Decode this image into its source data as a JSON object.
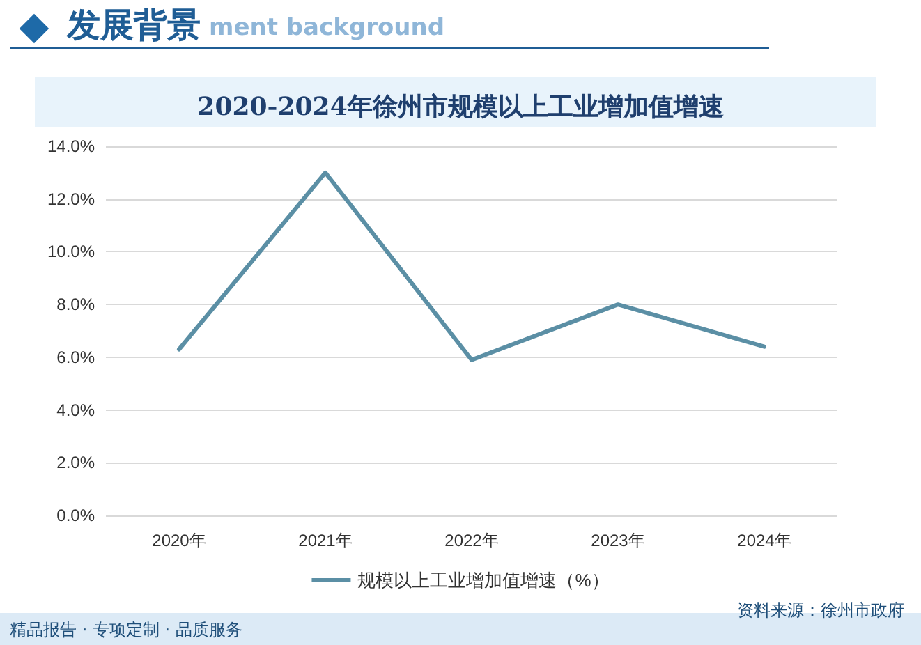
{
  "chart_data": {
    "type": "line",
    "title": "2020-2024年徐州市规模以上工业增加值增速",
    "annotations": [
      "发展背景",
      "ment background",
      "精品报告 · 专项定制 · 品质服务",
      "资料来源：徐州市政府"
    ],
    "categories": [
      "2020年",
      "2021年",
      "2022年",
      "2023年",
      "2024年"
    ],
    "series": [
      {
        "name": "规模以上工业增加值增速（%）",
        "color": "#5b8fa5",
        "values": [
          6.3,
          13.0,
          5.9,
          8.0,
          6.4
        ]
      }
    ],
    "ylim": [
      0,
      14
    ],
    "yticks": [
      {
        "value": 0,
        "label": "0.0%"
      },
      {
        "value": 2,
        "label": "2.0%"
      },
      {
        "value": 4,
        "label": "4.0%"
      },
      {
        "value": 6,
        "label": "6.0%"
      },
      {
        "value": 8,
        "label": "8.0%"
      },
      {
        "value": 10,
        "label": "10.0%"
      },
      {
        "value": 12,
        "label": "12.0%"
      },
      {
        "value": 14,
        "label": "14.0%"
      }
    ],
    "grid": "y",
    "legend": "bottom",
    "marker": "none",
    "line_style": "solid"
  }
}
